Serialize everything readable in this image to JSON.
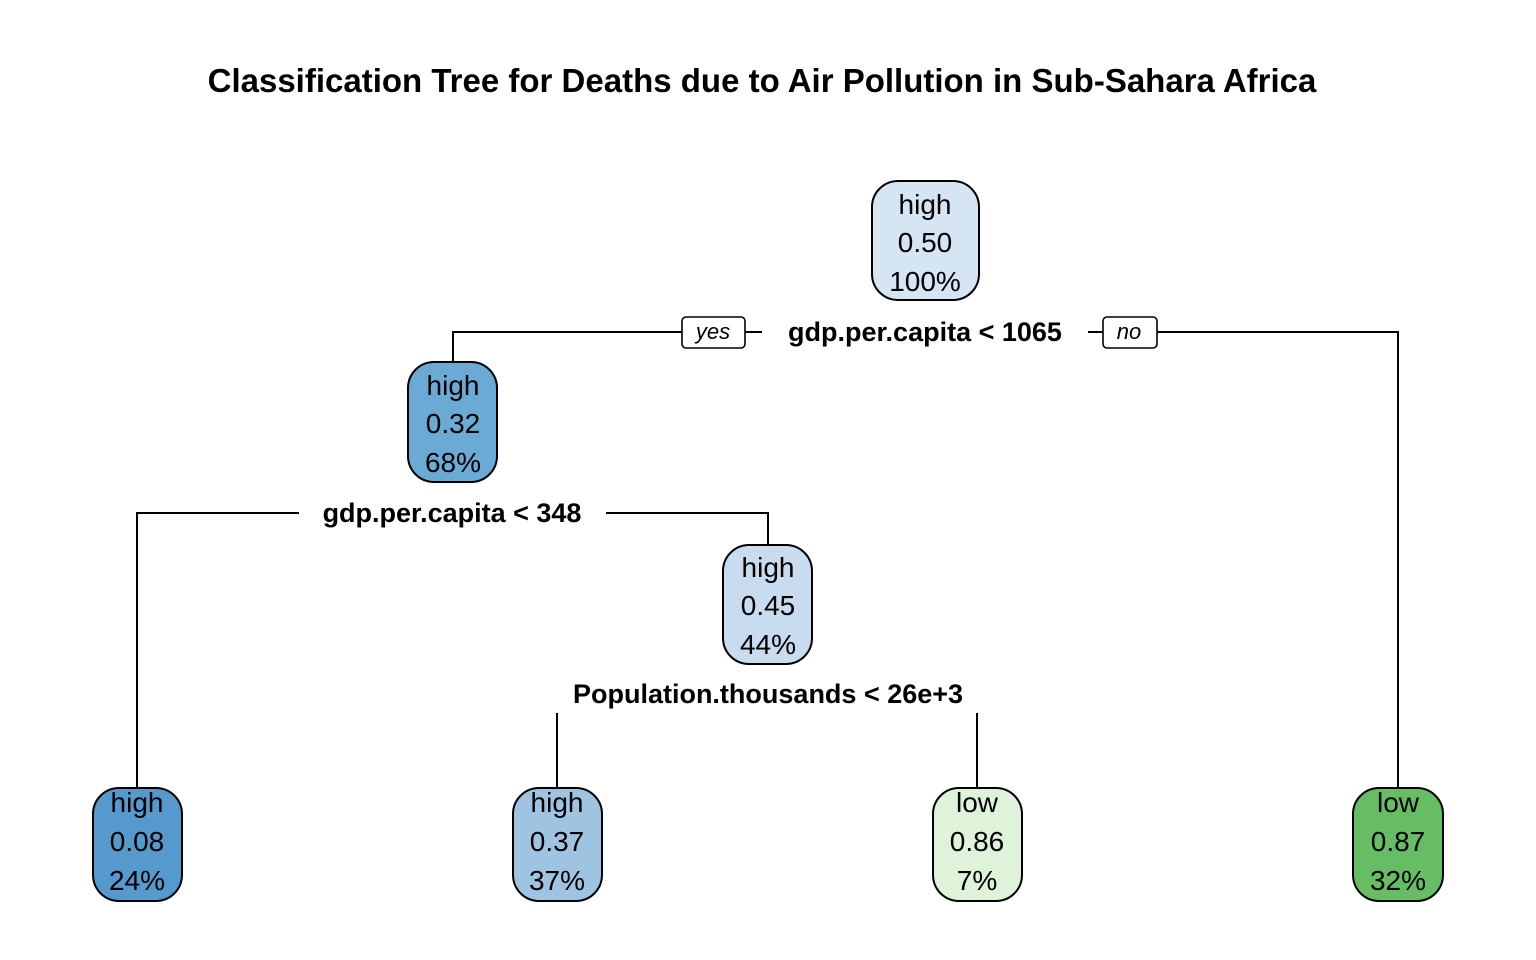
{
  "title": "Classification Tree for Deaths due to Air Pollution in Sub-Sahara Africa",
  "edge_labels": {
    "yes": "yes",
    "no": "no"
  },
  "nodes": [
    {
      "id": "root",
      "class_label": "high",
      "prob": "0.50",
      "pct": "100%",
      "fill": "#d6e5f4"
    },
    {
      "id": "n2",
      "class_label": "high",
      "prob": "0.32",
      "pct": "68%",
      "fill": "#6aaad4"
    },
    {
      "id": "n5",
      "class_label": "high",
      "prob": "0.45",
      "pct": "44%",
      "fill": "#c9dcef"
    },
    {
      "id": "leaf-a",
      "class_label": "high",
      "prob": "0.08",
      "pct": "24%",
      "fill": "#5699cc"
    },
    {
      "id": "leaf-b",
      "class_label": "high",
      "prob": "0.37",
      "pct": "37%",
      "fill": "#9fc4e2"
    },
    {
      "id": "leaf-c",
      "class_label": "low",
      "prob": "0.86",
      "pct": "7%",
      "fill": "#dff2da"
    },
    {
      "id": "leaf-d",
      "class_label": "low",
      "prob": "0.87",
      "pct": "32%",
      "fill": "#66bd64"
    }
  ],
  "splits": {
    "root": "gdp.per.capita < 1065",
    "n2": "gdp.per.capita < 348",
    "n5": "Population.thousands < 26e+3"
  }
}
